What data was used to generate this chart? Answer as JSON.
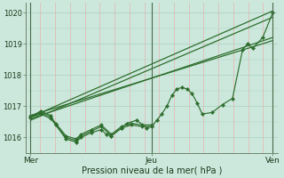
{
  "xlabel": "Pression niveau de la mer( hPa )",
  "day_labels": [
    "Mer",
    "Jeu",
    "Ven"
  ],
  "day_positions": [
    0,
    48,
    96
  ],
  "ylim": [
    1015.5,
    1020.3
  ],
  "yticks": [
    1016,
    1017,
    1018,
    1019,
    1020
  ],
  "bg_color": "#cce8dc",
  "line_color": "#2d6e2d",
  "grid_color_h": "#aacfbf",
  "grid_color_v": "#e8b0b0",
  "vline_color": "#4a6a4a",
  "straight_lines": [
    [
      [
        0,
        1016.65
      ],
      [
        96,
        1020.05
      ]
    ],
    [
      [
        0,
        1016.55
      ],
      [
        96,
        1019.85
      ]
    ],
    [
      [
        0,
        1016.6
      ],
      [
        96,
        1019.2
      ]
    ],
    [
      [
        0,
        1016.7
      ],
      [
        96,
        1019.1
      ]
    ]
  ],
  "wavy_x": [
    0,
    4,
    8,
    10,
    14,
    18,
    20,
    24,
    28,
    30,
    32,
    36,
    38,
    42,
    46,
    48,
    50,
    52,
    54,
    56,
    58,
    60,
    62,
    64,
    66,
    68,
    72,
    76,
    80,
    84,
    86,
    88,
    92,
    96
  ],
  "wavy_y": [
    1016.65,
    1016.85,
    1016.7,
    1016.4,
    1015.95,
    1015.85,
    1016.0,
    1016.15,
    1016.25,
    1016.1,
    1016.05,
    1016.3,
    1016.45,
    1016.55,
    1016.3,
    1016.35,
    1016.55,
    1016.75,
    1017.0,
    1017.35,
    1017.55,
    1017.6,
    1017.55,
    1017.4,
    1017.1,
    1016.75,
    1016.8,
    1017.05,
    1017.25,
    1018.8,
    1019.0,
    1018.85,
    1019.2,
    1020.0
  ],
  "flat_lines_x": [
    [
      0,
      4,
      8,
      10,
      14,
      18,
      20,
      24,
      28,
      32,
      36,
      40,
      44,
      48
    ],
    [
      0,
      4,
      8,
      10,
      14,
      18,
      20,
      24,
      28,
      32,
      36,
      40,
      44,
      48
    ]
  ],
  "flat_lines_y": [
    [
      1016.65,
      1016.75,
      1016.6,
      1016.4,
      1016.0,
      1015.9,
      1016.05,
      1016.2,
      1016.35,
      1016.05,
      1016.3,
      1016.4,
      1016.35,
      1016.35
    ],
    [
      1016.7,
      1016.8,
      1016.65,
      1016.45,
      1016.05,
      1015.95,
      1016.1,
      1016.25,
      1016.4,
      1016.1,
      1016.35,
      1016.45,
      1016.4,
      1016.4
    ]
  ]
}
